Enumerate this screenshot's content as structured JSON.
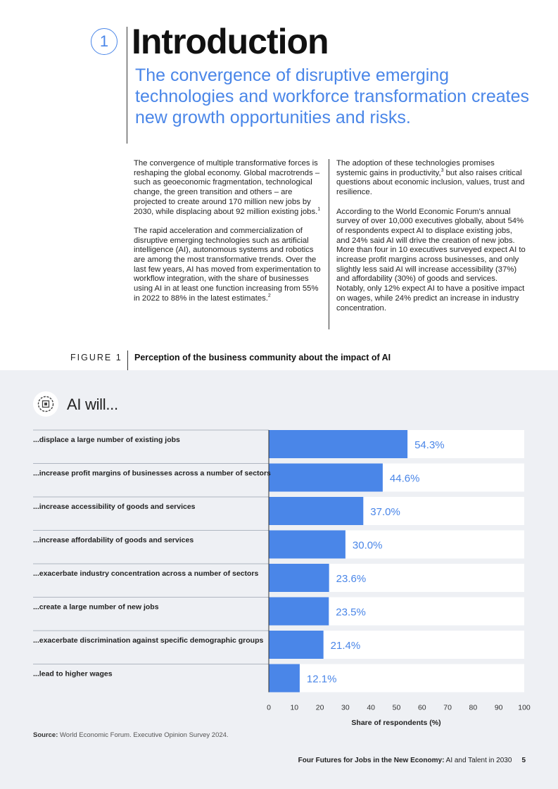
{
  "header": {
    "chapter_number": "1",
    "title": "Introduction",
    "subtitle": "The convergence of disruptive emerging technologies and workforce transformation creates new growth opportunities and risks."
  },
  "body": {
    "left": [
      {
        "text": "The convergence of multiple transformative forces is reshaping the global economy. Global macrotrends – such as geoeconomic fragmentation, technological change, the green transition and others – are projected to create around 170 million new jobs by 2030, while displacing about 92 million existing jobs.",
        "sup": "1",
        "after": ""
      },
      {
        "text": "The rapid acceleration and commercialization of disruptive emerging technologies such as artificial intelligence (AI), autonomous systems and robotics are among the most transformative trends. Over the last few years, AI has moved from experimentation to workflow integration, with the share of businesses using AI in at least one function increasing from 55% in 2022 to 88% in the latest estimates.",
        "sup": "2",
        "after": ""
      }
    ],
    "right": [
      {
        "text": "The adoption of these technologies promises systemic gains in productivity,",
        "sup": "3",
        "after": " but also raises critical questions about economic inclusion, values, trust and resilience."
      },
      {
        "text": "According to the World Economic Forum's annual survey of over 10,000 executives globally, about 54% of respondents expect AI to displace existing jobs, and 24% said AI will drive the creation of new jobs. More than four in 10 executives surveyed expect AI to increase profit margins across businesses, and only slightly less said AI will increase accessibility (37%) and affordability (30%) of goods and services. Notably, only 12% expect AI to have a positive impact on wages, while 24% predict an increase in industry concentration.",
        "sup": "",
        "after": ""
      }
    ]
  },
  "figure": {
    "label": "FIGURE 1",
    "title": "Perception of the business community about the impact of AI",
    "icon": "ai-chip-gear-icon",
    "heading": "AI will..."
  },
  "chart_data": {
    "type": "bar",
    "orientation": "horizontal",
    "categories": [
      "...displace a large number of existing jobs",
      "...increase profit margins of businesses across a number of sectors",
      "...increase accessibility of goods and services",
      "...increase affordability of goods and services",
      "...exacerbate industry concentration across a number of sectors",
      "...create a large number of new jobs",
      "...exacerbate discrimination against specific demographic groups",
      "...lead to higher wages"
    ],
    "values": [
      54.3,
      44.6,
      37.0,
      30.0,
      23.6,
      23.5,
      21.4,
      12.1
    ],
    "value_labels": [
      "54.3%",
      "44.6%",
      "37.0%",
      "30.0%",
      "23.6%",
      "23.5%",
      "21.4%",
      "12.1%"
    ],
    "xlim": [
      0,
      100
    ],
    "xticks": [
      "0",
      "10",
      "20",
      "30",
      "40",
      "50",
      "60",
      "70",
      "80",
      "90",
      "100"
    ],
    "xlabel": "Share of respondents (%)",
    "bar_color": "#4a86e8",
    "track_color": "#ffffff"
  },
  "source": {
    "label": "Source:",
    "text": " World Economic Forum. Executive Opinion Survey 2024."
  },
  "footer": {
    "report_bold": "Four Futures for Jobs in the New Economy:",
    "report_rest": " AI and Talent in 2030",
    "page": "5"
  }
}
